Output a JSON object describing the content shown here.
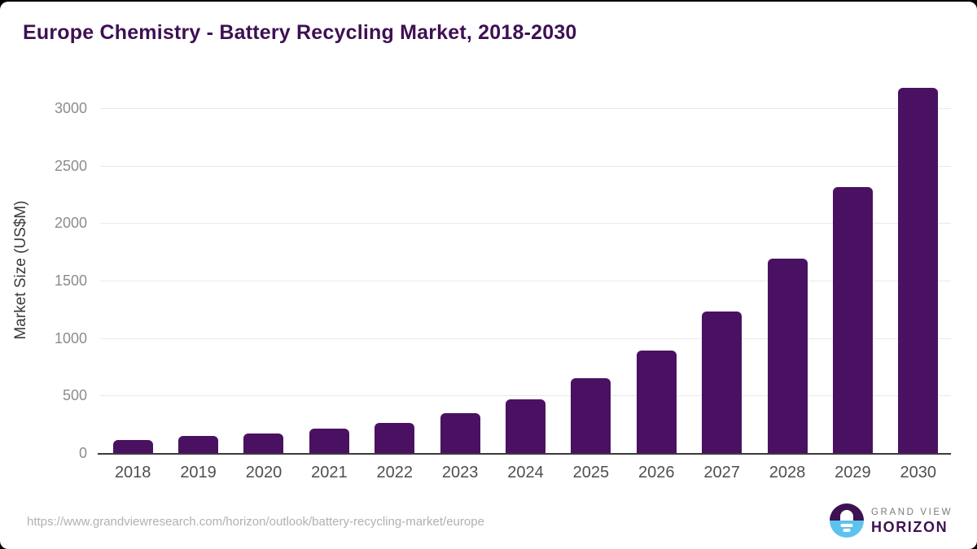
{
  "chart_data": {
    "type": "bar",
    "title": "Europe Chemistry - Battery Recycling Market, 2018-2030",
    "categories": [
      "2018",
      "2019",
      "2020",
      "2021",
      "2022",
      "2023",
      "2024",
      "2025",
      "2026",
      "2027",
      "2028",
      "2029",
      "2030"
    ],
    "values": [
      115,
      150,
      172,
      210,
      260,
      348,
      467,
      648,
      890,
      1228,
      1688,
      2313,
      3175
    ],
    "xlabel": "",
    "ylabel": "Market Size (US$M)",
    "ylim": [
      0,
      3000
    ],
    "yticks": [
      0,
      500,
      1000,
      1500,
      2000,
      2500,
      3000
    ],
    "grid": "horizontal gridlines at each 500",
    "legend": "none",
    "bar_color": "#4a1162"
  },
  "footer": {
    "source_url": "https://www.grandviewresearch.com/horizon/outlook/battery-recycling-market/europe",
    "brand": {
      "line1": "GRAND VIEW",
      "line2": "HORIZON"
    }
  },
  "colors": {
    "title": "#3e1053",
    "bar": "#4a1162",
    "gridline": "#e9e9e9",
    "axis_line": "#3b3b3b",
    "y_tick_text": "#8c8c8c",
    "x_tick_text": "#4e4e4e",
    "url_text": "#b1b1b1",
    "logo_blue": "#5ec2ef",
    "logo_purple": "#3d1152"
  }
}
